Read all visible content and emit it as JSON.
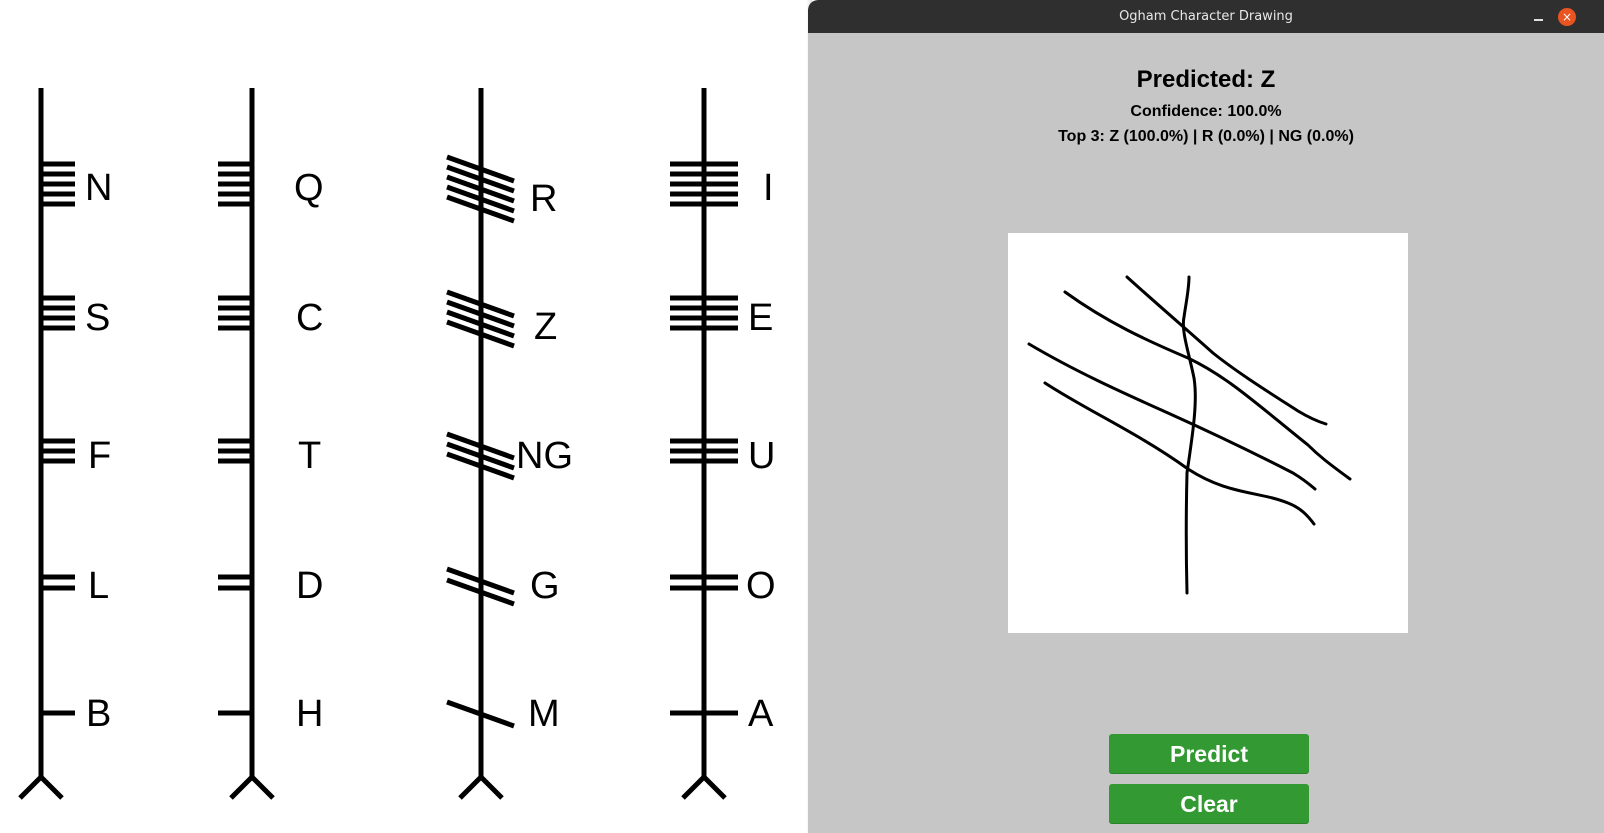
{
  "ogham_chart": {
    "columns": [
      {
        "letters": [
          "N",
          "S",
          "F",
          "L",
          "B"
        ]
      },
      {
        "letters": [
          "Q",
          "C",
          "T",
          "D",
          "H"
        ]
      },
      {
        "letters": [
          "R",
          "Z",
          "NG",
          "G",
          "M"
        ]
      },
      {
        "letters": [
          "I",
          "E",
          "U",
          "O",
          "A"
        ]
      }
    ]
  },
  "window": {
    "title": "Ogham Character Drawing",
    "minimize_glyph": "",
    "close_glyph": "×"
  },
  "prediction": {
    "title": "Predicted: Z",
    "confidence": "Confidence: 100.0%",
    "top3": "Top 3: Z (100.0%) | R (0.0%) | NG (0.0%)"
  },
  "buttons": {
    "predict": "Predict",
    "clear": "Clear"
  },
  "colors": {
    "panel_bg": "#c6c6c6",
    "title_bar": "#2f2f2f",
    "button_green": "#339933",
    "close_orange": "#e95420"
  }
}
